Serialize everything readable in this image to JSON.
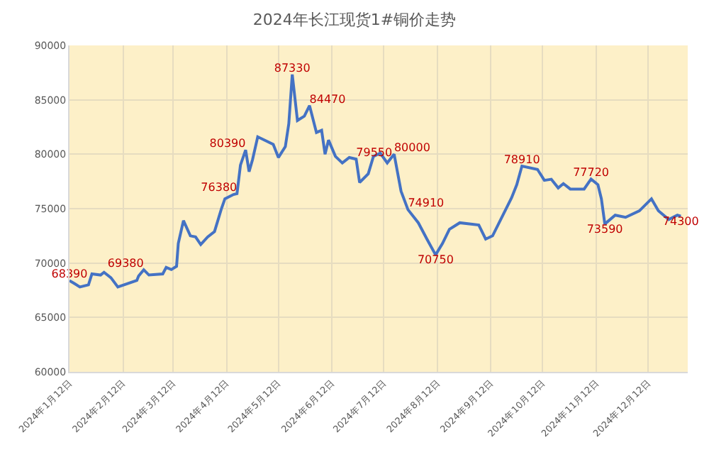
{
  "chart_data": {
    "type": "line",
    "title": "2024年长江现货1#铜价走势",
    "x": [
      "2024-01-12",
      "2024-01-15",
      "2024-01-18",
      "2024-01-23",
      "2024-01-25",
      "2024-01-30",
      "2024-02-01",
      "2024-02-05",
      "2024-02-09",
      "2024-02-20",
      "2024-02-21",
      "2024-02-24",
      "2024-02-27",
      "2024-03-06",
      "2024-03-08",
      "2024-03-11",
      "2024-03-14",
      "2024-03-15",
      "2024-03-18",
      "2024-03-22",
      "2024-03-25",
      "2024-03-28",
      "2024-04-01",
      "2024-04-05",
      "2024-04-09",
      "2024-04-11",
      "2024-04-16",
      "2024-04-18",
      "2024-04-20",
      "2024-04-23",
      "2024-04-25",
      "2024-04-27",
      "2024-04-30",
      "2024-05-09",
      "2024-05-12",
      "2024-05-16",
      "2024-05-18",
      "2024-05-20",
      "2024-05-23",
      "2024-05-27",
      "2024-05-30",
      "2024-06-03",
      "2024-06-06",
      "2024-06-08",
      "2024-06-10",
      "2024-06-14",
      "2024-06-18",
      "2024-06-22",
      "2024-06-26",
      "2024-06-28",
      "2024-07-03",
      "2024-07-06",
      "2024-07-10",
      "2024-07-14",
      "2024-07-18",
      "2024-07-22",
      "2024-07-26",
      "2024-08-01",
      "2024-08-06",
      "2024-08-11",
      "2024-08-15",
      "2024-08-19",
      "2024-08-25",
      "2024-09-05",
      "2024-09-09",
      "2024-09-13",
      "2024-09-24",
      "2024-09-27",
      "2024-09-30",
      "2024-10-09",
      "2024-10-13",
      "2024-10-17",
      "2024-10-21",
      "2024-10-24",
      "2024-10-28",
      "2024-11-05",
      "2024-11-09",
      "2024-11-13",
      "2024-11-15",
      "2024-11-17",
      "2024-11-23",
      "2024-11-29",
      "2024-12-07",
      "2024-12-14",
      "2024-12-18",
      "2024-12-24",
      "2024-12-29",
      "2024-12-31"
    ],
    "series": [
      {
        "color": "#4472c4",
        "values": [
          68390,
          68100,
          67800,
          68000,
          69000,
          68900,
          69150,
          68650,
          67800,
          68400,
          68800,
          69380,
          68900,
          69000,
          69600,
          69400,
          69700,
          71800,
          73900,
          72500,
          72400,
          71700,
          72400,
          72900,
          75000,
          75900,
          76300,
          76380,
          79000,
          80390,
          78400,
          79500,
          81600,
          80900,
          79700,
          80700,
          82800,
          87330,
          83100,
          83500,
          84470,
          82000,
          82200,
          80000,
          81300,
          79800,
          79200,
          79700,
          79550,
          77400,
          78200,
          79800,
          80100,
          79200,
          80000,
          76600,
          74910,
          73700,
          72200,
          70750,
          71800,
          73100,
          73700,
          73500,
          72200,
          72500,
          76000,
          77200,
          78910,
          78600,
          77600,
          77700,
          76900,
          77300,
          76800,
          76800,
          77720,
          77200,
          75900,
          73590,
          74400,
          74200,
          74800,
          75900,
          74800,
          74000,
          74400,
          74300
        ],
        "value_labels": [
          "68390",
          null,
          null,
          null,
          null,
          null,
          null,
          null,
          null,
          null,
          null,
          "69380",
          null,
          null,
          null,
          null,
          null,
          null,
          null,
          null,
          null,
          null,
          null,
          null,
          null,
          null,
          null,
          "76380",
          null,
          "80390",
          null,
          null,
          null,
          null,
          null,
          null,
          null,
          "87330",
          null,
          null,
          "84470",
          null,
          null,
          null,
          null,
          null,
          null,
          null,
          "79550",
          null,
          null,
          null,
          null,
          null,
          "80000",
          null,
          "74910",
          null,
          null,
          "70750",
          null,
          null,
          null,
          null,
          null,
          null,
          null,
          null,
          "78910",
          null,
          null,
          null,
          null,
          null,
          null,
          null,
          "77720",
          null,
          null,
          "73590",
          null,
          null,
          null,
          null,
          null,
          null,
          null,
          "74300"
        ]
      }
    ],
    "xlim": [
      "2024-01-12",
      "2025-01-04"
    ],
    "xticks": [
      {
        "value": "2024-01-12",
        "label": "2024年1月12日"
      },
      {
        "value": "2024-02-12",
        "label": "2024年2月12日"
      },
      {
        "value": "2024-03-12",
        "label": "2024年3月12日"
      },
      {
        "value": "2024-04-12",
        "label": "2024年4月12日"
      },
      {
        "value": "2024-05-12",
        "label": "2024年5月12日"
      },
      {
        "value": "2024-06-12",
        "label": "2024年6月12日"
      },
      {
        "value": "2024-07-12",
        "label": "2024年7月12日"
      },
      {
        "value": "2024-08-12",
        "label": "2024年8月12日"
      },
      {
        "value": "2024-09-12",
        "label": "2024年9月12日"
      },
      {
        "value": "2024-10-12",
        "label": "2024年10月12日"
      },
      {
        "value": "2024-11-12",
        "label": "2024年11月12日"
      },
      {
        "value": "2024-12-12",
        "label": "2024年12月12日"
      }
    ],
    "ylim": [
      60000,
      90000
    ],
    "yticks": [
      60000,
      65000,
      70000,
      75000,
      80000,
      85000,
      90000
    ],
    "grid": true,
    "legend": false,
    "marker": "none",
    "line_style": "solid"
  }
}
